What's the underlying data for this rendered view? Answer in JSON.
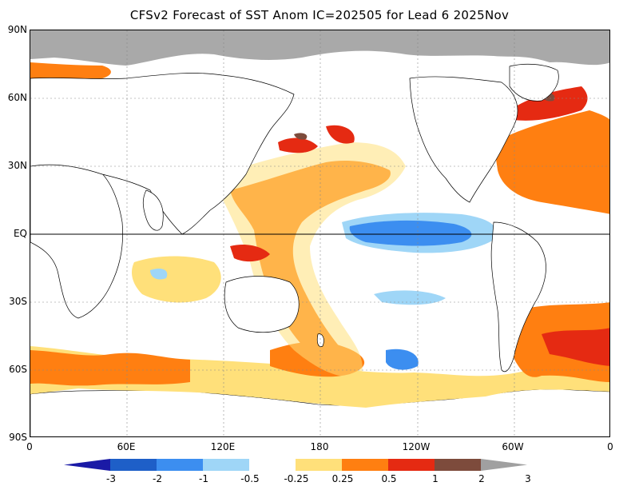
{
  "title": "CFSv2 Forecast of SST Anom IC=202505 for Lead 6 2025Nov",
  "lat_labels": [
    "90N",
    "60N",
    "30N",
    "EQ",
    "30S",
    "60S",
    "90S"
  ],
  "lon_labels": [
    "0",
    "60E",
    "120E",
    "180",
    "120W",
    "60W",
    "0"
  ],
  "colorbar": {
    "levels": [
      "-3",
      "-2",
      "-1",
      "-0.5",
      "-0.25",
      "0.25",
      "0.5",
      "1",
      "2",
      "3"
    ],
    "colors": [
      "#1a1aa6",
      "#1e5fc8",
      "#3c8ef0",
      "#9fd6f7",
      "#ffffff",
      "#ffe07a",
      "#ff7f11",
      "#e52a12",
      "#7d4b3c",
      "#a0a0a0"
    ]
  },
  "land_color": "#ffffff",
  "ice_color": "#a9a9a9"
}
